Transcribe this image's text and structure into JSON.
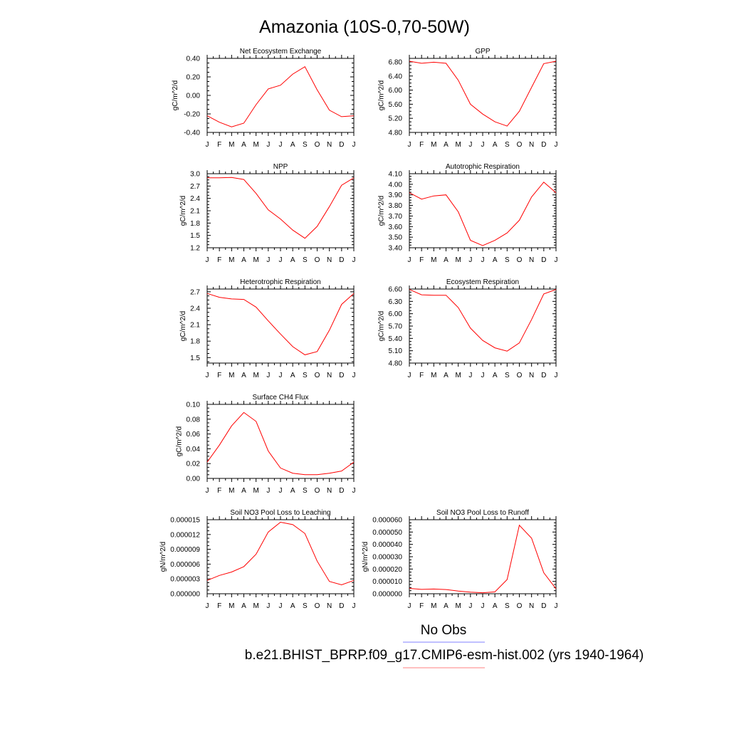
{
  "figure": {
    "title": "Amazonia (10S-0,70-50W)",
    "legend": [
      {
        "label": "No Obs",
        "color": "#8080ff"
      },
      {
        "label": "b.e21.BHIST_BPRP.f09_g17.CMIP6-esm-hist.002 (yrs 1940-1964)",
        "color": "#ff8080"
      }
    ]
  },
  "chart_data": [
    {
      "type": "line",
      "title": "Net Ecosystem Exchange",
      "ylabel": "gC/m^2/d",
      "categories": [
        "J",
        "F",
        "M",
        "A",
        "M",
        "J",
        "J",
        "A",
        "S",
        "O",
        "N",
        "D",
        "J"
      ],
      "ylim": [
        -0.4,
        0.4
      ],
      "yticks": [
        "-0.40",
        "-0.20",
        "0.00",
        "0.20",
        "0.40"
      ],
      "series": [
        {
          "color": "#ff0000",
          "values": [
            -0.22,
            -0.29,
            -0.34,
            -0.3,
            -0.1,
            0.07,
            0.11,
            0.23,
            0.31,
            0.06,
            -0.16,
            -0.23,
            -0.22
          ]
        }
      ]
    },
    {
      "type": "line",
      "title": "GPP",
      "ylabel": "gC/m^2/d",
      "categories": [
        "J",
        "F",
        "M",
        "A",
        "M",
        "J",
        "J",
        "A",
        "S",
        "O",
        "N",
        "D",
        "J"
      ],
      "ylim": [
        4.8,
        6.9
      ],
      "yticks": [
        "4.80",
        "5.20",
        "5.60",
        "6.00",
        "6.40",
        "6.80"
      ],
      "series": [
        {
          "color": "#ff0000",
          "values": [
            6.82,
            6.76,
            6.79,
            6.76,
            6.28,
            5.6,
            5.32,
            5.1,
            4.98,
            5.4,
            6.08,
            6.75,
            6.82
          ]
        }
      ]
    },
    {
      "type": "line",
      "title": "NPP",
      "ylabel": "gC/m^2/d",
      "categories": [
        "J",
        "F",
        "M",
        "A",
        "M",
        "J",
        "J",
        "A",
        "S",
        "O",
        "N",
        "D",
        "J"
      ],
      "ylim": [
        1.2,
        3.0
      ],
      "yticks": [
        "1.2",
        "1.5",
        "1.8",
        "2.1",
        "2.4",
        "2.7",
        "3.0"
      ],
      "series": [
        {
          "color": "#ff0000",
          "values": [
            2.9,
            2.9,
            2.91,
            2.86,
            2.52,
            2.12,
            1.9,
            1.63,
            1.43,
            1.72,
            2.2,
            2.72,
            2.9
          ]
        }
      ]
    },
    {
      "type": "line",
      "title": "Autotrophic Respiration",
      "ylabel": "gC/m^2/d",
      "categories": [
        "J",
        "F",
        "M",
        "A",
        "M",
        "J",
        "J",
        "A",
        "S",
        "O",
        "N",
        "D",
        "J"
      ],
      "ylim": [
        3.4,
        4.1
      ],
      "yticks": [
        "3.40",
        "3.50",
        "3.60",
        "3.70",
        "3.80",
        "3.90",
        "4.00",
        "4.10"
      ],
      "series": [
        {
          "color": "#ff0000",
          "values": [
            3.92,
            3.86,
            3.89,
            3.9,
            3.74,
            3.47,
            3.42,
            3.47,
            3.54,
            3.66,
            3.88,
            4.02,
            3.92
          ]
        }
      ]
    },
    {
      "type": "line",
      "title": "Heterotrophic Respiration",
      "ylabel": "gC/m^2/d",
      "categories": [
        "J",
        "F",
        "M",
        "A",
        "M",
        "J",
        "J",
        "A",
        "S",
        "O",
        "N",
        "D",
        "J"
      ],
      "ylim": [
        1.4,
        2.75
      ],
      "yticks": [
        "1.5",
        "1.8",
        "2.1",
        "2.4",
        "2.7"
      ],
      "series": [
        {
          "color": "#ff0000",
          "values": [
            2.67,
            2.6,
            2.57,
            2.56,
            2.42,
            2.17,
            1.93,
            1.7,
            1.55,
            1.61,
            2.0,
            2.47,
            2.67
          ]
        }
      ]
    },
    {
      "type": "line",
      "title": "Ecosystem Respiration",
      "ylabel": "gC/m^2/d",
      "categories": [
        "J",
        "F",
        "M",
        "A",
        "M",
        "J",
        "J",
        "A",
        "S",
        "O",
        "N",
        "D",
        "J"
      ],
      "ylim": [
        4.8,
        6.6
      ],
      "yticks": [
        "4.80",
        "5.10",
        "5.40",
        "5.70",
        "6.00",
        "6.30",
        "6.60"
      ],
      "series": [
        {
          "color": "#ff0000",
          "values": [
            6.59,
            6.46,
            6.45,
            6.45,
            6.15,
            5.65,
            5.35,
            5.17,
            5.09,
            5.29,
            5.86,
            6.48,
            6.59
          ]
        }
      ]
    },
    {
      "type": "line",
      "title": "Surface CH4 Flux",
      "ylabel": "gC/m^2/d",
      "categories": [
        "J",
        "F",
        "M",
        "A",
        "M",
        "J",
        "J",
        "A",
        "S",
        "O",
        "N",
        "D",
        "J"
      ],
      "ylim": [
        0.0,
        0.1
      ],
      "yticks": [
        "0.00",
        "0.02",
        "0.04",
        "0.06",
        "0.08",
        "0.10"
      ],
      "series": [
        {
          "color": "#ff0000",
          "values": [
            0.022,
            0.045,
            0.071,
            0.089,
            0.077,
            0.037,
            0.014,
            0.007,
            0.005,
            0.005,
            0.007,
            0.01,
            0.022
          ]
        }
      ]
    },
    {
      "type": "line",
      "title": "Soil NO3 Pool Loss to Leaching",
      "ylabel": "gN/m^2/d",
      "categories": [
        "J",
        "F",
        "M",
        "A",
        "M",
        "J",
        "J",
        "A",
        "S",
        "O",
        "N",
        "D",
        "J"
      ],
      "ylim": [
        0.0,
        1.5e-05
      ],
      "yticks": [
        "0.000000",
        "0.000003",
        "0.000006",
        "0.000009",
        "0.000012",
        "0.000015"
      ],
      "series": [
        {
          "color": "#ff0000",
          "values": [
            2.7e-06,
            3.7e-06,
            4.4e-06,
            5.5e-06,
            8e-06,
            1.25e-05,
            1.45e-05,
            1.4e-05,
            1.22e-05,
            6.6e-06,
            2.5e-06,
            1.8e-06,
            2.7e-06
          ]
        }
      ]
    },
    {
      "type": "line",
      "title": "Soil NO3 Pool Loss to Runoff",
      "ylabel": "gN/m^2/d",
      "categories": [
        "J",
        "F",
        "M",
        "A",
        "M",
        "J",
        "J",
        "A",
        "S",
        "O",
        "N",
        "D",
        "J"
      ],
      "ylim": [
        0.0,
        6e-05
      ],
      "yticks": [
        "0.000000",
        "0.000010",
        "0.000020",
        "0.000030",
        "0.000040",
        "0.000050",
        "0.000060"
      ],
      "series": [
        {
          "color": "#ff0000",
          "values": [
            4.3e-06,
            3.5e-06,
            3.8e-06,
            3.4e-06,
            2.2e-06,
            1.3e-06,
            8e-07,
            1.5e-06,
            1.15e-05,
            5.55e-05,
            4.5e-05,
            1.7e-05,
            4e-06
          ]
        }
      ]
    }
  ]
}
